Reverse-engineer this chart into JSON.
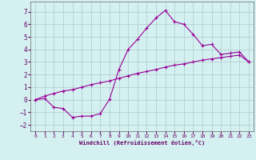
{
  "xlabel": "Windchill (Refroidissement éolien,°C)",
  "background_color": "#d4f0f0",
  "grid_color": "#b0c8c8",
  "line_color": "#990099",
  "xlim": [
    -0.5,
    23.5
  ],
  "ylim": [
    -2.5,
    7.8
  ],
  "xticks": [
    0,
    1,
    2,
    3,
    4,
    5,
    6,
    7,
    8,
    9,
    10,
    11,
    12,
    13,
    14,
    15,
    16,
    17,
    18,
    19,
    20,
    21,
    22,
    23
  ],
  "yticks": [
    -2,
    -1,
    0,
    1,
    2,
    3,
    4,
    5,
    6,
    7
  ],
  "curve1_x": [
    0,
    1,
    2,
    3,
    4,
    5,
    6,
    7,
    8,
    9,
    10,
    11,
    12,
    13,
    14,
    15,
    16,
    17,
    18,
    19,
    20,
    21,
    22,
    23
  ],
  "curve1_y": [
    0.0,
    0.1,
    -0.6,
    -0.7,
    -1.4,
    -1.3,
    -1.3,
    -1.1,
    0.05,
    2.4,
    4.0,
    4.8,
    5.7,
    6.5,
    7.1,
    6.2,
    6.0,
    5.2,
    4.3,
    4.4,
    3.6,
    3.7,
    3.8,
    3.0
  ],
  "curve2_x": [
    0,
    1,
    2,
    3,
    4,
    5,
    6,
    7,
    8,
    9,
    10,
    11,
    12,
    13,
    14,
    15,
    16,
    17,
    18,
    19,
    20,
    21,
    22,
    23
  ],
  "curve2_y": [
    0.0,
    0.3,
    0.5,
    0.7,
    0.8,
    1.0,
    1.2,
    1.35,
    1.5,
    1.7,
    1.9,
    2.1,
    2.25,
    2.4,
    2.6,
    2.75,
    2.85,
    3.0,
    3.15,
    3.25,
    3.35,
    3.45,
    3.55,
    3.0
  ]
}
